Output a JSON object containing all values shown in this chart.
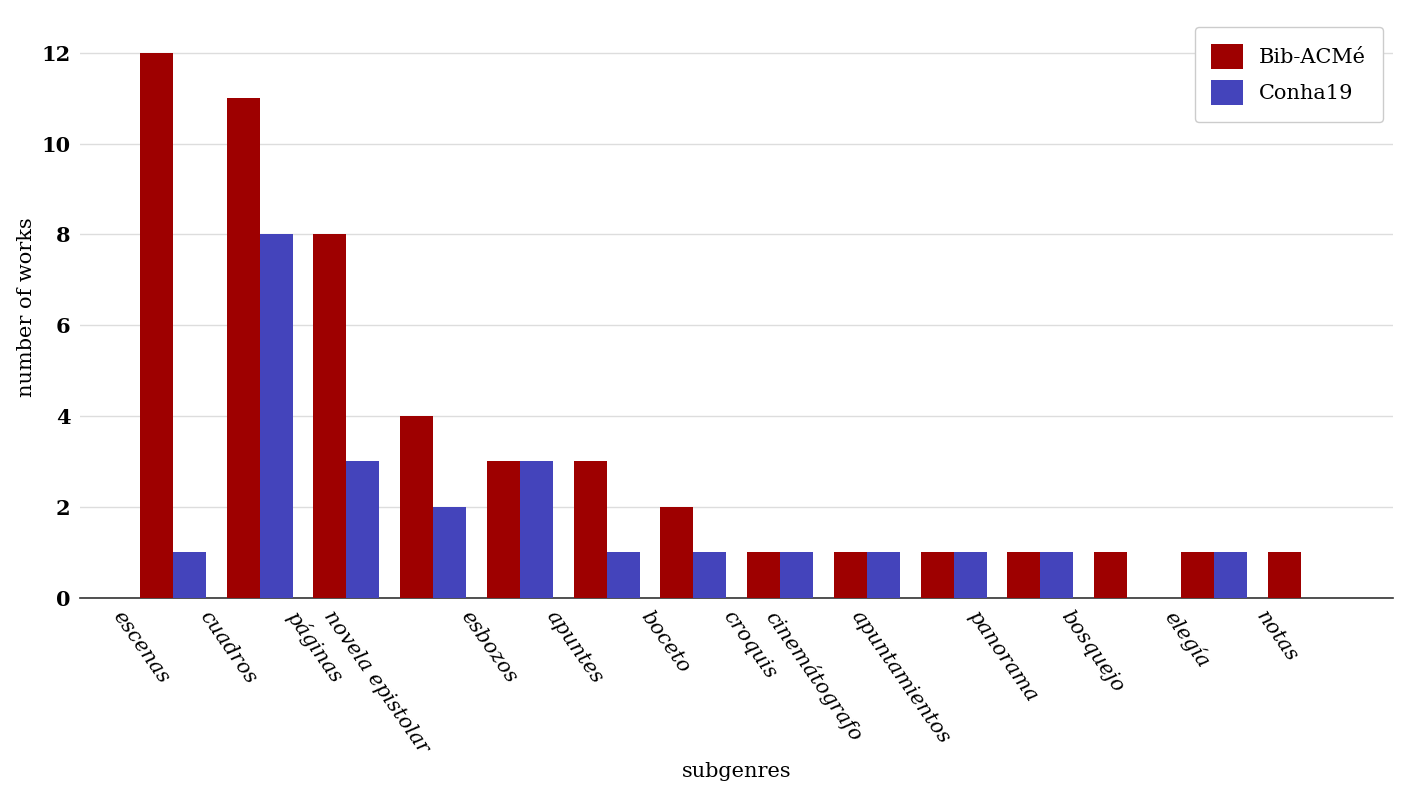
{
  "categories": [
    "escenas",
    "cuadros",
    "páginas",
    "novela epistolar",
    "esbozos",
    "apuntes",
    "boceto",
    "croquis",
    "cinemátografo",
    "apuntamientos",
    "panorama",
    "bosquejo",
    "elegía",
    "notas"
  ],
  "bib_acme": [
    12,
    11,
    8,
    4,
    3,
    3,
    2,
    1,
    1,
    1,
    1,
    1,
    1,
    1
  ],
  "conha19": [
    1,
    8,
    3,
    2,
    3,
    1,
    1,
    1,
    1,
    1,
    1,
    0,
    1,
    0
  ],
  "bib_color": "#9e0000",
  "conha_color": "#4444bb",
  "ylabel": "number of works",
  "xlabel": "subgenres",
  "legend_bib": "Bib-ACMé",
  "legend_conha": "Conha19",
  "ylim": [
    0,
    12.8
  ],
  "yticks": [
    0,
    2,
    4,
    6,
    8,
    10,
    12
  ],
  "background_color": "#ffffff",
  "label_fontsize": 15,
  "tick_fontsize": 15,
  "legend_fontsize": 15,
  "bar_width": 0.38,
  "grid_color": "#dddddd",
  "rotation": -55
}
